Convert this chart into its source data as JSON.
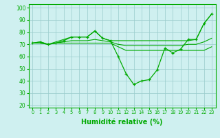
{
  "x": [
    0,
    1,
    2,
    3,
    4,
    5,
    6,
    7,
    8,
    9,
    10,
    11,
    12,
    13,
    14,
    15,
    16,
    17,
    18,
    19,
    20,
    21,
    22,
    23
  ],
  "line_main": [
    71,
    72,
    70,
    71,
    73,
    76,
    76,
    76,
    81,
    75,
    73,
    60,
    46,
    37,
    40,
    41,
    49,
    67,
    63,
    66,
    74,
    74,
    87,
    95
  ],
  "line_max": [
    71,
    72,
    70,
    72,
    74,
    76,
    76,
    76,
    81,
    75,
    73,
    73,
    73,
    73,
    73,
    73,
    73,
    73,
    73,
    73,
    73,
    74,
    87,
    95
  ],
  "line_min": [
    71,
    71,
    70,
    71,
    71,
    71,
    71,
    71,
    71,
    71,
    71,
    68,
    65,
    65,
    65,
    65,
    65,
    65,
    65,
    65,
    65,
    65,
    65,
    68
  ],
  "line_mean": [
    71,
    71,
    70,
    71,
    72,
    73,
    73,
    73,
    74,
    73,
    72,
    70,
    69,
    69,
    69,
    69,
    69,
    69,
    69,
    69,
    70,
    70,
    72,
    75
  ],
  "bg_color": "#cff0f0",
  "line_color": "#00aa00",
  "grid_color": "#99cccc",
  "ylabel_ticks": [
    20,
    30,
    40,
    50,
    60,
    70,
    80,
    90,
    100
  ],
  "xlabel": "Humidité relative (%)",
  "xlim": [
    -0.5,
    23.5
  ],
  "ylim": [
    18,
    103
  ]
}
